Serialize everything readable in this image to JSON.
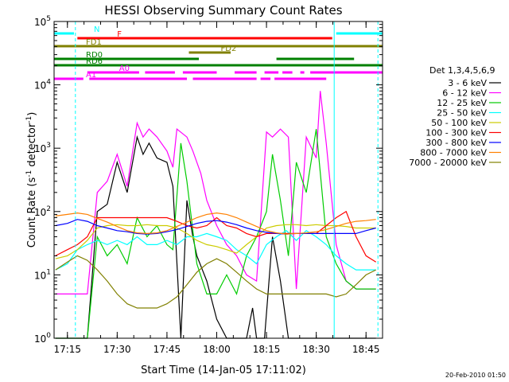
{
  "chart_data": {
    "type": "line",
    "title": "HESSI Observing Summary Count Rates",
    "xlabel": "Start Time (14-Jan-05 17:11:02)",
    "ylabel_main": "Count Rate (s",
    "ylabel_exp1": "-1",
    "ylabel_mid": " detector",
    "ylabel_exp2": "-1",
    "ylabel_end": ")",
    "y_log": true,
    "xlim": [
      17.183,
      18.833
    ],
    "ylim_exp": [
      0,
      5
    ],
    "x_ticks": [
      {
        "value": 17.25,
        "label": "17:15"
      },
      {
        "value": 17.5,
        "label": "17:30"
      },
      {
        "value": 17.75,
        "label": "17:45"
      },
      {
        "value": 18.0,
        "label": "18:00"
      },
      {
        "value": 18.25,
        "label": "18:15"
      },
      {
        "value": 18.5,
        "label": "18:30"
      },
      {
        "value": 18.75,
        "label": "18:45"
      }
    ],
    "y_ticks": [
      {
        "exp": 0,
        "base": "10",
        "sup": "0"
      },
      {
        "exp": 1,
        "base": "10",
        "sup": "1"
      },
      {
        "exp": 2,
        "base": "10",
        "sup": "2"
      },
      {
        "exp": 3,
        "base": "10",
        "sup": "3"
      },
      {
        "exp": 4,
        "base": "10",
        "sup": "4"
      },
      {
        "exp": 5,
        "base": "10",
        "sup": "5"
      }
    ],
    "legend": {
      "title": "Det 1,3,4,5,6,9",
      "position": "right"
    },
    "series": [
      {
        "name": "3 - 6 keV",
        "color": "#000000",
        "x": [
          17.19,
          17.25,
          17.3,
          17.35,
          17.4,
          17.45,
          17.5,
          17.55,
          17.6,
          17.63,
          17.66,
          17.7,
          17.75,
          17.78,
          17.82,
          17.85,
          17.88,
          17.9,
          17.95,
          18.0,
          18.05,
          18.1,
          18.15,
          18.18,
          18.2,
          18.24,
          18.28,
          18.32,
          18.36,
          18.4,
          18.45,
          18.5,
          18.55,
          18.6,
          18.65,
          18.7,
          18.75,
          18.8
        ],
        "y": [
          1,
          1,
          1,
          1,
          100,
          130,
          600,
          200,
          1500,
          800,
          1200,
          700,
          600,
          250,
          1,
          150,
          40,
          20,
          8,
          2,
          1,
          1,
          1,
          3,
          1,
          1,
          40,
          8,
          1,
          1,
          1,
          1,
          1,
          1,
          1,
          1,
          1,
          1
        ]
      },
      {
        "name": "6 - 12 keV",
        "color": "#ff00ff",
        "x": [
          17.19,
          17.25,
          17.3,
          17.35,
          17.4,
          17.45,
          17.5,
          17.55,
          17.6,
          17.63,
          17.66,
          17.7,
          17.75,
          17.78,
          17.8,
          17.85,
          17.88,
          17.92,
          17.95,
          18.0,
          18.05,
          18.1,
          18.15,
          18.2,
          18.25,
          18.28,
          18.32,
          18.36,
          18.4,
          18.45,
          18.5,
          18.52,
          18.55,
          18.6,
          18.65,
          18.7,
          18.75,
          18.8
        ],
        "y": [
          5,
          5,
          5,
          5,
          200,
          300,
          800,
          250,
          2500,
          1500,
          2000,
          1500,
          900,
          500,
          2000,
          1500,
          900,
          400,
          150,
          60,
          30,
          20,
          10,
          8,
          1800,
          1500,
          2000,
          1500,
          6,
          1500,
          700,
          8000,
          1200,
          30,
          8,
          6,
          6,
          6
        ]
      },
      {
        "name": "12 - 25 keV",
        "color": "#00cc00",
        "x": [
          17.19,
          17.25,
          17.3,
          17.35,
          17.4,
          17.45,
          17.5,
          17.55,
          17.6,
          17.65,
          17.7,
          17.75,
          17.78,
          17.82,
          17.85,
          17.88,
          17.9,
          17.95,
          18.0,
          18.05,
          18.1,
          18.15,
          18.2,
          18.25,
          18.28,
          18.32,
          18.36,
          18.4,
          18.45,
          18.5,
          18.55,
          18.6,
          18.65,
          18.7,
          18.75,
          18.8
        ],
        "y": [
          1,
          1,
          1,
          1,
          40,
          20,
          30,
          15,
          80,
          40,
          60,
          30,
          25,
          1200,
          300,
          50,
          15,
          5,
          5,
          10,
          5,
          20,
          40,
          100,
          800,
          150,
          20,
          600,
          200,
          2000,
          40,
          15,
          8,
          6,
          6,
          6
        ]
      },
      {
        "name": "25 - 50 keV",
        "color": "#00ffff",
        "x": [
          17.19,
          17.25,
          17.3,
          17.35,
          17.4,
          17.45,
          17.5,
          17.55,
          17.6,
          17.65,
          17.7,
          17.75,
          17.8,
          17.85,
          17.9,
          17.95,
          18.0,
          18.05,
          18.1,
          18.15,
          18.2,
          18.25,
          18.3,
          18.35,
          18.4,
          18.45,
          18.5,
          18.55,
          18.6,
          18.65,
          18.7,
          18.75,
          18.8
        ],
        "y": [
          12,
          15,
          25,
          30,
          35,
          30,
          35,
          30,
          40,
          30,
          30,
          35,
          30,
          40,
          40,
          45,
          40,
          35,
          25,
          20,
          15,
          30,
          40,
          50,
          35,
          50,
          40,
          30,
          20,
          15,
          12,
          12,
          12
        ]
      },
      {
        "name": "50 - 100 keV",
        "color": "#cccc00",
        "x": [
          17.19,
          17.25,
          17.3,
          17.35,
          17.4,
          17.45,
          17.5,
          17.55,
          17.6,
          17.65,
          17.7,
          17.75,
          17.8,
          17.85,
          17.9,
          17.95,
          18.0,
          18.05,
          18.1,
          18.15,
          18.2,
          18.25,
          18.3,
          18.35,
          18.4,
          18.45,
          18.5,
          18.55,
          18.6,
          18.65,
          18.7,
          18.75,
          18.8
        ],
        "y": [
          18,
          20,
          25,
          35,
          55,
          60,
          62,
          60,
          60,
          62,
          60,
          60,
          55,
          45,
          35,
          30,
          28,
          25,
          22,
          30,
          40,
          55,
          60,
          62,
          62,
          60,
          62,
          60,
          60,
          58,
          55,
          55,
          55
        ]
      },
      {
        "name": "100 - 300 keV",
        "color": "#ff0000",
        "x": [
          17.19,
          17.25,
          17.3,
          17.35,
          17.4,
          17.45,
          17.5,
          17.55,
          17.6,
          17.65,
          17.7,
          17.75,
          17.8,
          17.85,
          17.9,
          17.95,
          18.0,
          18.05,
          18.1,
          18.15,
          18.2,
          18.25,
          18.3,
          18.35,
          18.4,
          18.45,
          18.5,
          18.55,
          18.6,
          18.65,
          18.7,
          18.75,
          18.8
        ],
        "y": [
          20,
          25,
          30,
          40,
          80,
          80,
          80,
          80,
          80,
          80,
          80,
          80,
          70,
          60,
          55,
          60,
          80,
          60,
          55,
          45,
          40,
          45,
          45,
          45,
          45,
          45,
          45,
          60,
          80,
          100,
          40,
          20,
          16
        ]
      },
      {
        "name": "300 - 800 keV",
        "color": "#0000ff",
        "x": [
          17.19,
          17.25,
          17.3,
          17.35,
          17.4,
          17.45,
          17.5,
          17.55,
          17.6,
          17.65,
          17.7,
          17.75,
          17.8,
          17.85,
          17.9,
          17.95,
          18.0,
          18.05,
          18.1,
          18.15,
          18.2,
          18.25,
          18.3,
          18.35,
          18.4,
          18.45,
          18.5,
          18.55,
          18.6,
          18.65,
          18.7,
          18.75,
          18.8
        ],
        "y": [
          60,
          65,
          75,
          70,
          60,
          55,
          50,
          48,
          45,
          44,
          45,
          48,
          52,
          58,
          65,
          70,
          72,
          68,
          62,
          55,
          50,
          47,
          45,
          44,
          45,
          45,
          45,
          45,
          45,
          45,
          45,
          50,
          55
        ]
      },
      {
        "name": "800 - 7000 keV",
        "color": "#ff8000",
        "x": [
          17.19,
          17.25,
          17.3,
          17.35,
          17.4,
          17.45,
          17.5,
          17.55,
          17.6,
          17.65,
          17.7,
          17.75,
          17.8,
          17.85,
          17.9,
          17.95,
          18.0,
          18.05,
          18.1,
          18.15,
          18.2,
          18.25,
          18.3,
          18.35,
          18.4,
          18.45,
          18.5,
          18.55,
          18.6,
          18.65,
          18.7,
          18.75,
          18.8
        ],
        "y": [
          85,
          90,
          95,
          90,
          78,
          68,
          58,
          50,
          46,
          45,
          46,
          50,
          58,
          68,
          80,
          90,
          95,
          90,
          80,
          68,
          58,
          50,
          46,
          44,
          45,
          46,
          48,
          52,
          58,
          65,
          70,
          72,
          75
        ]
      },
      {
        "name": "7000 - 20000 keV",
        "color": "#808000",
        "x": [
          17.19,
          17.25,
          17.3,
          17.35,
          17.4,
          17.45,
          17.5,
          17.55,
          17.6,
          17.65,
          17.7,
          17.75,
          17.8,
          17.85,
          17.9,
          17.95,
          18.0,
          18.05,
          18.1,
          18.15,
          18.2,
          18.25,
          18.3,
          18.35,
          18.4,
          18.45,
          18.5,
          18.55,
          18.6,
          18.65,
          18.7,
          18.75,
          18.8
        ],
        "y": [
          12,
          16,
          20,
          17,
          12,
          8,
          5,
          3.5,
          3,
          3,
          3,
          3.5,
          4.5,
          7,
          11,
          15,
          18,
          15,
          11,
          8,
          6,
          5,
          5,
          5,
          5,
          5,
          5,
          5,
          4.5,
          5,
          7,
          10,
          12
        ]
      }
    ],
    "flag_bars": [
      {
        "name": "N",
        "color": "#00ffff",
        "row": 0,
        "segments": [
          [
            17.183,
            17.283
          ],
          [
            18.6,
            18.833
          ]
        ]
      },
      {
        "name": "F",
        "color": "#ff0000",
        "row": 1,
        "segments": [
          [
            17.3,
            18.58
          ]
        ]
      },
      {
        "name": "FD1",
        "color": "#808000",
        "row": 2,
        "segments": [
          [
            17.183,
            18.833
          ]
        ]
      },
      {
        "name": "FD2",
        "color": "#808000",
        "row": 3,
        "segments": [
          [
            17.86,
            18.07
          ]
        ]
      },
      {
        "name": "RD0",
        "color": "#008000",
        "row": 4,
        "segments": [
          [
            17.183,
            17.91
          ],
          [
            18.3,
            18.69
          ]
        ]
      },
      {
        "name": "RD6",
        "color": "#008000",
        "row": 5,
        "segments": [
          [
            17.183,
            18.833
          ]
        ]
      },
      {
        "name": "A0",
        "color": "#ff00ff",
        "row": 6,
        "segments": [
          [
            17.35,
            17.61
          ],
          [
            17.64,
            17.79
          ],
          [
            17.83,
            18.0
          ],
          [
            18.09,
            18.2
          ],
          [
            18.24,
            18.31
          ],
          [
            18.33,
            18.38
          ],
          [
            18.42,
            18.44
          ],
          [
            18.47,
            18.833
          ]
        ]
      },
      {
        "name": "A1",
        "color": "#ff00ff",
        "row": 7,
        "segments": [
          [
            17.183,
            17.33
          ],
          [
            17.36,
            17.85
          ],
          [
            17.88,
            18.2
          ],
          [
            18.22,
            18.27
          ],
          [
            18.29,
            18.55
          ]
        ]
      }
    ],
    "vlines": [
      {
        "x": 17.29,
        "color": "#00ffff",
        "dashed": true
      },
      {
        "x": 18.59,
        "color": "#00ffff",
        "dashed": false
      },
      {
        "x": 18.81,
        "color": "#00ffff",
        "dashed": true
      }
    ]
  },
  "footer": {
    "timestamp": "20-Feb-2010 01:50"
  }
}
